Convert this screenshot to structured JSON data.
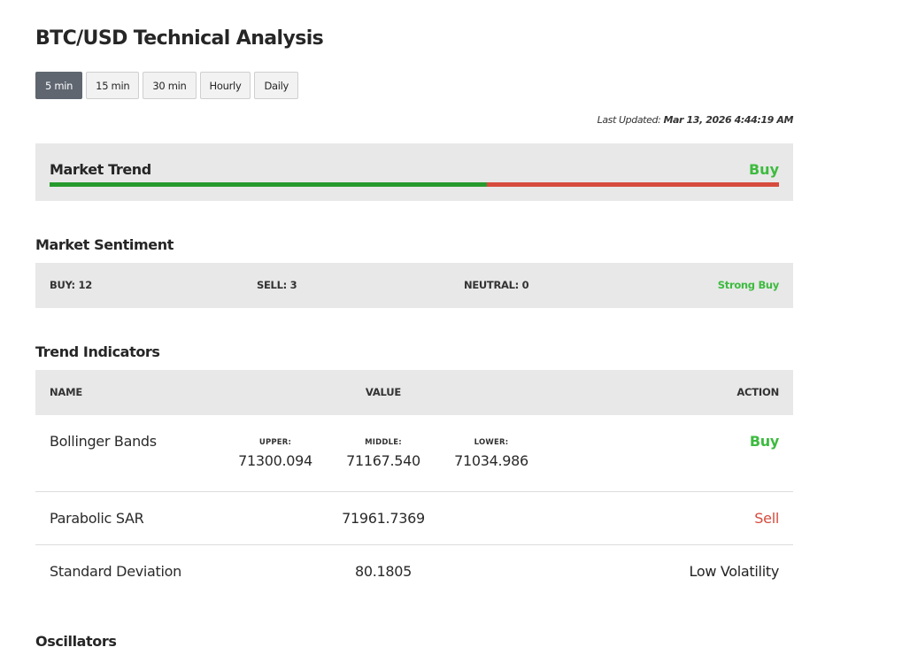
{
  "header": {
    "title": "BTC/USD Technical Analysis"
  },
  "timeframes": [
    {
      "label": "5 min",
      "active": true
    },
    {
      "label": "15 min",
      "active": false
    },
    {
      "label": "30 min",
      "active": false
    },
    {
      "label": "Hourly",
      "active": false
    },
    {
      "label": "Daily",
      "active": false
    }
  ],
  "last_updated": {
    "label": "Last Updated:",
    "value": "Mar 13, 2026 4:44:19 AM"
  },
  "market_trend": {
    "label": "Market Trend",
    "signal": "Buy",
    "buy_fraction": 0.6,
    "buy_color": "#279a2d",
    "sell_color": "#d64b3e"
  },
  "market_sentiment": {
    "title": "Market Sentiment",
    "buy": "BUY: 12",
    "sell": "SELL: 3",
    "neutral": "NEUTRAL: 0",
    "signal": "Strong Buy"
  },
  "trend_indicators": {
    "title": "Trend Indicators",
    "columns": {
      "name": "NAME",
      "value": "VALUE",
      "action": "ACTION"
    },
    "bollinger": {
      "name": "Bollinger Bands",
      "upper_label": "UPPER:",
      "upper": "71300.094",
      "middle_label": "MIDDLE:",
      "middle": "71167.540",
      "lower_label": "LOWER:",
      "lower": "71034.986",
      "action": "Buy"
    },
    "parabolic_sar": {
      "name": "Parabolic SAR",
      "value": "71961.7369",
      "action": "Sell"
    },
    "std_dev": {
      "name": "Standard Deviation",
      "value": "80.1805",
      "action": "Low Volatility"
    }
  },
  "oscillators": {
    "title": "Oscillators"
  },
  "colors": {
    "buy": "#3dbb3f",
    "sell": "#d64b3e",
    "active_tab": "#5f6670"
  }
}
